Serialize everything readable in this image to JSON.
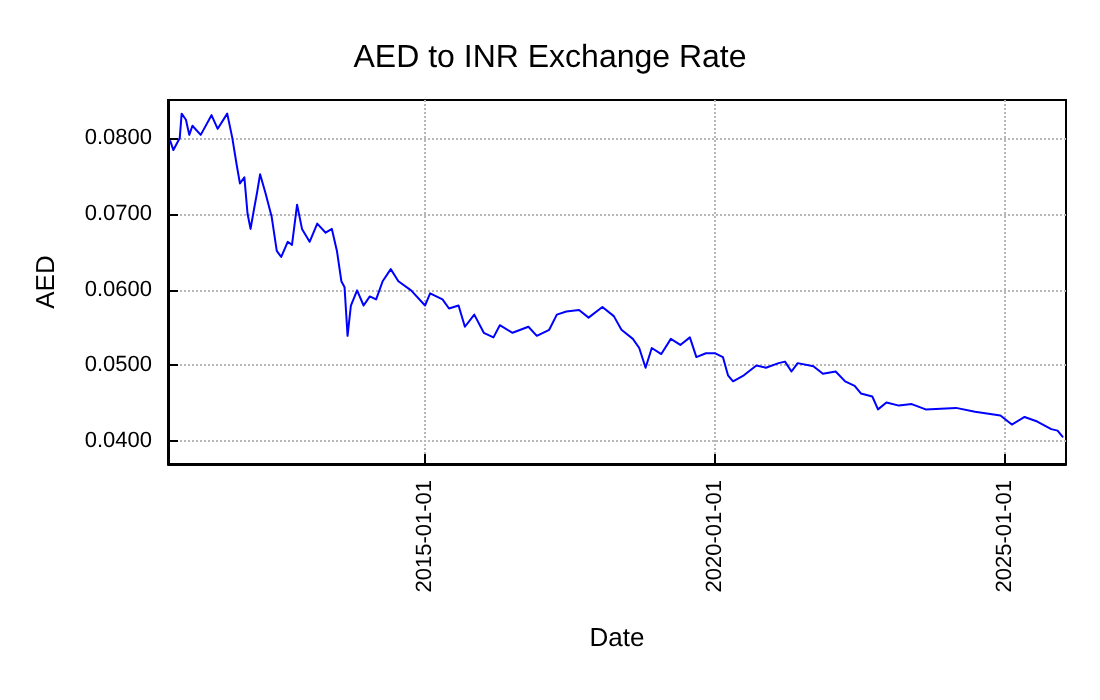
{
  "chart_data": {
    "type": "line",
    "title": "AED to INR Exchange Rate",
    "xlabel": "Date",
    "ylabel": "AED",
    "x": [
      "2010-08-10",
      "2010-08-30",
      "2010-10-09",
      "2010-10-21",
      "2010-11-17",
      "2010-12-08",
      "2010-12-28",
      "2011-02-18",
      "2011-04-27",
      "2011-06-05",
      "2011-08-04",
      "2011-09-05",
      "2011-10-03",
      "2011-10-23",
      "2011-11-20",
      "2011-12-10",
      "2011-12-29",
      "2012-01-18",
      "2012-02-08",
      "2012-02-27",
      "2012-03-31",
      "2012-05-10",
      "2012-06-11",
      "2012-07-09",
      "2012-08-19",
      "2012-09-15",
      "2012-10-17",
      "2012-11-17",
      "2013-01-04",
      "2013-02-21",
      "2013-04-15",
      "2013-05-24",
      "2013-06-25",
      "2013-07-23",
      "2013-08-12",
      "2013-08-31",
      "2013-09-21",
      "2013-10-30",
      "2013-12-10",
      "2014-01-18",
      "2014-02-27",
      "2014-04-09",
      "2014-05-30",
      "2014-07-17",
      "2014-10-05",
      "2015-01-01",
      "2015-02-02",
      "2015-04-21",
      "2015-06-01",
      "2015-07-31",
      "2015-09-09",
      "2015-11-07",
      "2016-01-06",
      "2016-03-07",
      "2016-04-16",
      "2016-07-05",
      "2016-10-13",
      "2016-12-05",
      "2017-02-21",
      "2017-04-10",
      "2017-06-09",
      "2017-08-28",
      "2017-10-27",
      "2018-01-22",
      "2018-04-04",
      "2018-05-22",
      "2018-08-02",
      "2018-09-11",
      "2018-10-21",
      "2018-11-29",
      "2019-01-28",
      "2019-03-29",
      "2019-05-28",
      "2019-07-27",
      "2019-09-06",
      "2019-11-05",
      "2020-01-03",
      "2020-02-20",
      "2020-03-23",
      "2020-04-24",
      "2020-07-01",
      "2020-09-18",
      "2020-11-17",
      "2021-02-05",
      "2021-03-17",
      "2021-04-27",
      "2021-06-05",
      "2021-09-12",
      "2021-11-11",
      "2022-01-30",
      "2022-03-31",
      "2022-05-30",
      "2022-07-08",
      "2022-09-18",
      "2022-10-24",
      "2022-12-16",
      "2023-03-05",
      "2023-05-24",
      "2023-08-20",
      "2024-02-27",
      "2024-06-26",
      "2024-12-03",
      "2025-02-13",
      "2025-05-04",
      "2025-07-23",
      "2025-10-19",
      "2025-11-28",
      "2025-12-29"
    ],
    "series": [
      {
        "color": "#0000ff",
        "values": [
          0.0796,
          0.0784,
          0.08,
          0.0832,
          0.0824,
          0.0804,
          0.0816,
          0.0804,
          0.083,
          0.0812,
          0.0832,
          0.08,
          0.0764,
          0.074,
          0.0748,
          0.07,
          0.068,
          0.0704,
          0.0728,
          0.0752,
          0.0728,
          0.0696,
          0.0651,
          0.0643,
          0.0663,
          0.0659,
          0.0712,
          0.068,
          0.0663,
          0.0687,
          0.0675,
          0.068,
          0.0651,
          0.0611,
          0.0603,
          0.0539,
          0.0579,
          0.0599,
          0.0579,
          0.0591,
          0.0587,
          0.0611,
          0.0627,
          0.0611,
          0.0599,
          0.0579,
          0.0595,
          0.0587,
          0.0575,
          0.0579,
          0.0551,
          0.0567,
          0.0543,
          0.0537,
          0.0553,
          0.0543,
          0.0551,
          0.0539,
          0.0547,
          0.0567,
          0.0571,
          0.0573,
          0.0563,
          0.0577,
          0.0565,
          0.0547,
          0.0535,
          0.0523,
          0.0497,
          0.0523,
          0.0515,
          0.0535,
          0.0527,
          0.0537,
          0.0511,
          0.0516,
          0.0516,
          0.0511,
          0.0487,
          0.0479,
          0.0487,
          0.05,
          0.0497,
          0.0503,
          0.0505,
          0.0492,
          0.0503,
          0.0499,
          0.0489,
          0.0492,
          0.0479,
          0.0473,
          0.0463,
          0.0459,
          0.0442,
          0.0451,
          0.0447,
          0.0449,
          0.0442,
          0.0444,
          0.0439,
          0.0434,
          0.0422,
          0.0432,
          0.0426,
          0.0416,
          0.0414,
          0.0406
        ]
      }
    ],
    "xlim": [
      "2010-07-27",
      "2026-01-20"
    ],
    "xticks": [
      "2015-01-01",
      "2020-01-01",
      "2025-01-01"
    ],
    "ylim": [
      0.037,
      0.085
    ],
    "yticks": [
      {
        "value": 0.04,
        "label": "0.0400"
      },
      {
        "value": 0.05,
        "label": "0.0500"
      },
      {
        "value": 0.06,
        "label": "0.0600"
      },
      {
        "value": 0.07,
        "label": "0.0700"
      },
      {
        "value": 0.08,
        "label": "0.0800"
      }
    ],
    "grid": true,
    "marker": "none",
    "line_style": "solid"
  }
}
